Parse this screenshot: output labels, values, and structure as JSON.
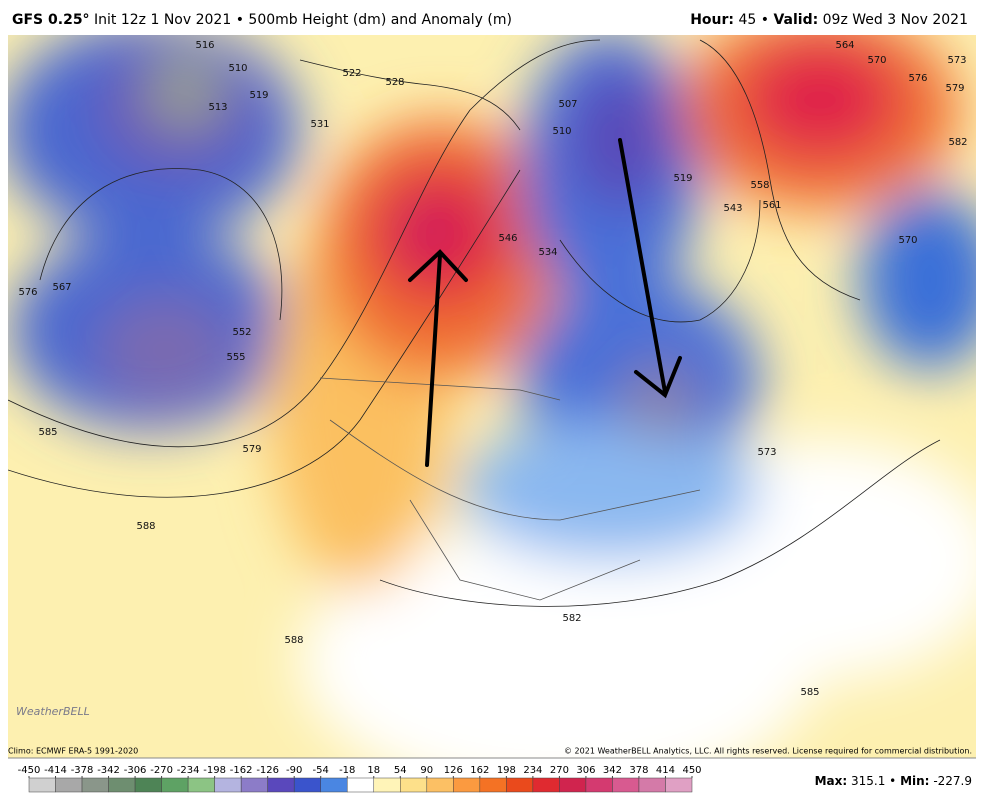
{
  "header": {
    "model": "GFS 0.25°",
    "run": "Init 12z 1 Nov 2021",
    "separator": "•",
    "product": "500mb Height (dm) and Anomaly (m)",
    "hour_label": "Hour:",
    "hour": 45,
    "valid_label": "Valid:",
    "valid": "09z Wed 3 Nov 2021"
  },
  "contour_labels": [
    516,
    510,
    513,
    519,
    522,
    528,
    531,
    576,
    567,
    552,
    555,
    585,
    579,
    588,
    588,
    546,
    534,
    507,
    510,
    519,
    558,
    561,
    543,
    564,
    570,
    576,
    573,
    579,
    582,
    570,
    573,
    582,
    585
  ],
  "logo": "WeatherBELL",
  "footer": {
    "climo": "Climo: ECMWF ERA-5 1991-2020",
    "copyright": "© 2021 WeatherBELL Analytics, LLC. All rights reserved. License required for commercial distribution."
  },
  "colorbar": {
    "ticks": [
      -450,
      -414,
      -378,
      -342,
      -306,
      -270,
      -234,
      -198,
      -162,
      -126,
      -90,
      -54,
      -18,
      18,
      54,
      90,
      126,
      162,
      198,
      234,
      270,
      306,
      342,
      378,
      414,
      450
    ],
    "colors": [
      "#d0d0d0",
      "#a8a8a8",
      "#8a968a",
      "#6e8e70",
      "#4e8456",
      "#5ea264",
      "#8cc484",
      "#b4b4e0",
      "#8c7cc8",
      "#5a48bc",
      "#3a54cc",
      "#4a86e2",
      "#ffffff",
      "#fff4b8",
      "#fde08a",
      "#fcc064",
      "#fb9a40",
      "#f47224",
      "#ea4a1c",
      "#e02a30",
      "#d0244e",
      "#d43a70",
      "#d85a90",
      "#d47aa8",
      "#e0a0c4"
    ]
  },
  "stats": {
    "max_label": "Max:",
    "max": 315.1,
    "separator": "•",
    "min_label": "Min:",
    "min": -227.9
  }
}
